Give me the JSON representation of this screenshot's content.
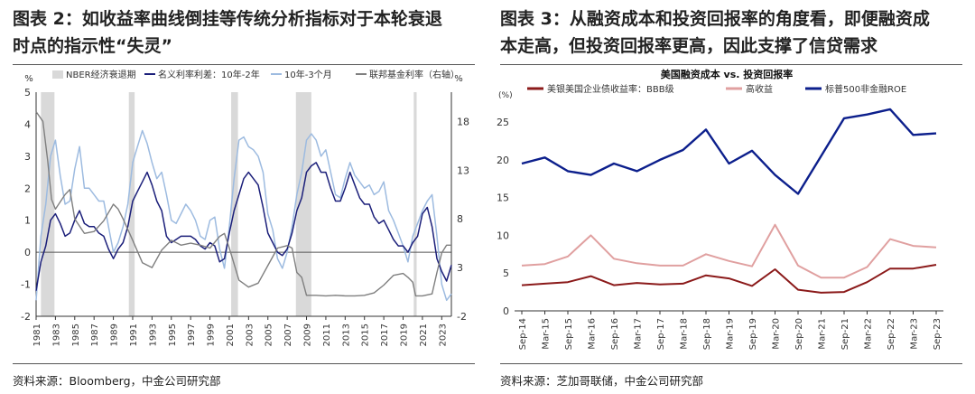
{
  "left": {
    "figure_title_line1": "图表 2：如收益率曲线倒挂等传统分析指标对于本轮衰退",
    "figure_title_line2": "时点的指示性“失灵”",
    "source": "资料来源：Bloomberg，中金公司研究部"
  },
  "right": {
    "figure_title_line1": "图表 3：从融资成本和投资回报率的角度看，即便融资成",
    "figure_title_line2": "本走高，但投资回报率更高，因此支撑了信贷需求",
    "source": "资料来源：芝加哥联储，中金公司研究部"
  },
  "colors": {
    "navy": "#1b1f7a",
    "lightblue": "#9dbbe0",
    "grey": "#7f7f7f",
    "recession": "#d9d9d9",
    "maroon": "#8b1a1a",
    "pink": "#e0a0a0",
    "darkblue": "#0c1f8c"
  },
  "chart_data": [
    {
      "type": "line",
      "y_unit_left": "%",
      "y_unit_right": "%",
      "legend": [
        "NBER经济衰退期",
        "名义利率利差：10年-2年",
        "10年-3个月",
        "联邦基金利率（右轴）"
      ],
      "legend_position": "top",
      "ylim_left": [
        -2,
        5
      ],
      "yticks_left": [
        "-2",
        "-1",
        "0",
        "1",
        "2",
        "3",
        "4",
        "5"
      ],
      "ylim_right": [
        -2,
        21
      ],
      "yticks_right": [
        "-2",
        "3",
        "8",
        "13",
        "18"
      ],
      "xlim": [
        1981,
        2024
      ],
      "xticks": [
        "1981",
        "1983",
        "1985",
        "1987",
        "1989",
        "1991",
        "1993",
        "1995",
        "1997",
        "1999",
        "2001",
        "2003",
        "2005",
        "2007",
        "2009",
        "2011",
        "2013",
        "2015",
        "2017",
        "2019",
        "2021",
        "2023"
      ],
      "recessions": [
        [
          1981.5,
          1982.9
        ],
        [
          1990.6,
          1991.2
        ],
        [
          2001.2,
          2001.9
        ],
        [
          2007.9,
          2009.5
        ],
        [
          2020.1,
          2020.4
        ]
      ],
      "series": [
        {
          "name": "名义利率利差：10年-2年",
          "x": [
            1981,
            1981.5,
            1982,
            1982.5,
            1983,
            1983.5,
            1984,
            1984.5,
            1985,
            1985.5,
            1986,
            1986.5,
            1987,
            1987.5,
            1988,
            1988.5,
            1989,
            1989.5,
            1990,
            1990.5,
            1991,
            1991.5,
            1992,
            1992.5,
            1993,
            1993.5,
            1994,
            1994.5,
            1995,
            1995.5,
            1996,
            1996.5,
            1997,
            1997.5,
            1998,
            1998.5,
            1999,
            1999.5,
            2000,
            2000.5,
            2001,
            2001.5,
            2002,
            2002.5,
            2003,
            2003.5,
            2004,
            2004.5,
            2005,
            2005.5,
            2006,
            2006.5,
            2007,
            2007.5,
            2008,
            2008.5,
            2009,
            2009.5,
            2010,
            2010.5,
            2011,
            2011.5,
            2012,
            2012.5,
            2013,
            2013.5,
            2014,
            2014.5,
            2015,
            2015.5,
            2016,
            2016.5,
            2017,
            2017.5,
            2018,
            2018.5,
            2019,
            2019.5,
            2020,
            2020.5,
            2021,
            2021.5,
            2022,
            2022.5,
            2023,
            2023.5,
            2024
          ],
          "values": [
            -1.2,
            -0.3,
            0.2,
            1.0,
            1.2,
            0.9,
            0.5,
            0.6,
            1.0,
            1.3,
            0.9,
            0.8,
            0.8,
            0.6,
            0.5,
            0.1,
            -0.2,
            0.1,
            0.3,
            0.8,
            1.6,
            1.9,
            2.2,
            2.5,
            2.1,
            1.6,
            1.3,
            0.5,
            0.3,
            0.4,
            0.5,
            0.5,
            0.5,
            0.4,
            0.2,
            0.1,
            0.3,
            0.2,
            -0.3,
            -0.2,
            0.6,
            1.3,
            1.8,
            2.3,
            2.5,
            2.3,
            2.1,
            1.4,
            0.6,
            0.3,
            0.0,
            -0.1,
            0.1,
            0.6,
            1.3,
            1.7,
            2.5,
            2.7,
            2.8,
            2.5,
            2.5,
            2.0,
            1.6,
            1.6,
            2.0,
            2.5,
            2.1,
            1.7,
            1.5,
            1.5,
            1.1,
            0.9,
            1.0,
            0.7,
            0.4,
            0.2,
            0.2,
            0.0,
            0.3,
            0.5,
            1.2,
            1.4,
            0.8,
            -0.2,
            -0.6,
            -0.9,
            -0.4
          ]
        },
        {
          "name": "10年-3个月",
          "x": [
            1981,
            1981.5,
            1982,
            1982.5,
            1983,
            1983.5,
            1984,
            1984.5,
            1985,
            1985.5,
            1986,
            1986.5,
            1987,
            1987.5,
            1988,
            1988.5,
            1989,
            1989.5,
            1990,
            1990.5,
            1991,
            1991.5,
            1992,
            1992.5,
            1993,
            1993.5,
            1994,
            1994.5,
            1995,
            1995.5,
            1996,
            1996.5,
            1997,
            1997.5,
            1998,
            1998.5,
            1999,
            1999.5,
            2000,
            2000.5,
            2001,
            2001.5,
            2002,
            2002.5,
            2003,
            2003.5,
            2004,
            2004.5,
            2005,
            2005.5,
            2006,
            2006.5,
            2007,
            2007.5,
            2008,
            2008.5,
            2009,
            2009.5,
            2010,
            2010.5,
            2011,
            2011.5,
            2012,
            2012.5,
            2013,
            2013.5,
            2014,
            2014.5,
            2015,
            2015.5,
            2016,
            2016.5,
            2017,
            2017.5,
            2018,
            2018.5,
            2019,
            2019.5,
            2020,
            2020.5,
            2021,
            2021.5,
            2022,
            2022.5,
            2023,
            2023.5,
            2024
          ],
          "values": [
            -1.5,
            0.5,
            1.5,
            3.0,
            3.5,
            2.4,
            1.5,
            1.6,
            2.6,
            3.3,
            2.0,
            2.0,
            1.8,
            1.6,
            1.6,
            0.8,
            0.0,
            0.3,
            0.8,
            1.5,
            2.8,
            3.3,
            3.8,
            3.4,
            2.8,
            2.3,
            2.5,
            1.8,
            1.0,
            0.9,
            1.2,
            1.5,
            1.3,
            1.0,
            0.5,
            0.4,
            1.0,
            1.1,
            0.1,
            -0.5,
            0.8,
            2.3,
            3.5,
            3.6,
            3.3,
            3.2,
            3.0,
            2.5,
            1.2,
            0.7,
            -0.2,
            -0.5,
            0.0,
            0.8,
            1.8,
            2.5,
            3.5,
            3.7,
            3.5,
            3.0,
            3.2,
            2.5,
            1.8,
            1.7,
            2.3,
            2.8,
            2.4,
            2.2,
            2.0,
            2.1,
            1.8,
            1.9,
            2.2,
            1.3,
            1.0,
            0.6,
            0.2,
            -0.3,
            0.5,
            0.9,
            1.3,
            1.6,
            1.8,
            0.5,
            -1.0,
            -1.5,
            -1.3
          ]
        },
        {
          "name": "联邦基金利率（右轴）",
          "axis": "right",
          "x": [
            1981,
            1981.7,
            1982.2,
            1982.6,
            1983,
            1984,
            1984.5,
            1985,
            1986,
            1987,
            1988,
            1989,
            1989.5,
            1990,
            1991,
            1992,
            1993,
            1994,
            1995,
            1996,
            1997,
            1998,
            1999,
            2000,
            2000.5,
            2001,
            2002,
            2003,
            2004,
            2005,
            2006,
            2007,
            2007.5,
            2008,
            2008.5,
            2009,
            2010,
            2011,
            2012,
            2013,
            2014,
            2015,
            2016,
            2017,
            2018,
            2019,
            2019.5,
            2020,
            2020.3,
            2021,
            2022,
            2022.5,
            2023,
            2023.5,
            2024
          ],
          "values": [
            19.0,
            18.0,
            14.0,
            10.0,
            9.0,
            10.5,
            11.0,
            8.0,
            6.5,
            6.7,
            7.8,
            9.5,
            9.0,
            8.0,
            5.8,
            3.5,
            3.0,
            4.8,
            5.8,
            5.3,
            5.5,
            5.3,
            5.0,
            6.2,
            6.5,
            5.0,
            1.7,
            1.0,
            1.4,
            3.2,
            5.0,
            5.25,
            5.0,
            2.5,
            2.0,
            0.15,
            0.15,
            0.1,
            0.15,
            0.1,
            0.1,
            0.15,
            0.4,
            1.2,
            2.2,
            2.4,
            2.0,
            1.5,
            0.1,
            0.1,
            0.3,
            2.5,
            4.5,
            5.3,
            5.3
          ]
        }
      ]
    },
    {
      "type": "line",
      "title": "美国融资成本 vs. 投资回报率",
      "y_unit": "(%)",
      "ylim": [
        0,
        28
      ],
      "yticks": [
        "0",
        "5",
        "10",
        "15",
        "20",
        "25"
      ],
      "legend_position": "top",
      "x_labels": [
        "Sep-14",
        "Mar-15",
        "Sep-15",
        "Mar-16",
        "Sep-16",
        "Mar-17",
        "Sep-17",
        "Mar-18",
        "Sep-18",
        "Mar-19",
        "Sep-19",
        "Mar-20",
        "Sep-20",
        "Mar-21",
        "Sep-21",
        "Mar-22",
        "Sep-22",
        "Mar-23",
        "Sep-23"
      ],
      "series": [
        {
          "name": "美银美国企业债收益率：BBB级",
          "values": [
            3.4,
            3.6,
            3.8,
            4.6,
            3.4,
            3.7,
            3.5,
            3.6,
            4.7,
            4.3,
            3.3,
            5.5,
            2.8,
            2.4,
            2.5,
            3.8,
            5.6,
            5.6,
            6.1
          ]
        },
        {
          "name": "高收益",
          "values": [
            6.0,
            6.2,
            7.2,
            10.0,
            6.9,
            6.3,
            6.0,
            6.0,
            7.5,
            6.6,
            5.9,
            11.4,
            6.0,
            4.4,
            4.4,
            5.8,
            9.5,
            8.6,
            8.4
          ]
        },
        {
          "name": "标普500非金融ROE",
          "values": [
            19.5,
            20.3,
            18.5,
            18.0,
            19.5,
            18.5,
            20.0,
            21.3,
            24.0,
            19.5,
            21.2,
            18.0,
            15.5,
            20.5,
            25.5,
            26.0,
            26.7,
            23.3,
            23.5
          ]
        }
      ]
    }
  ]
}
